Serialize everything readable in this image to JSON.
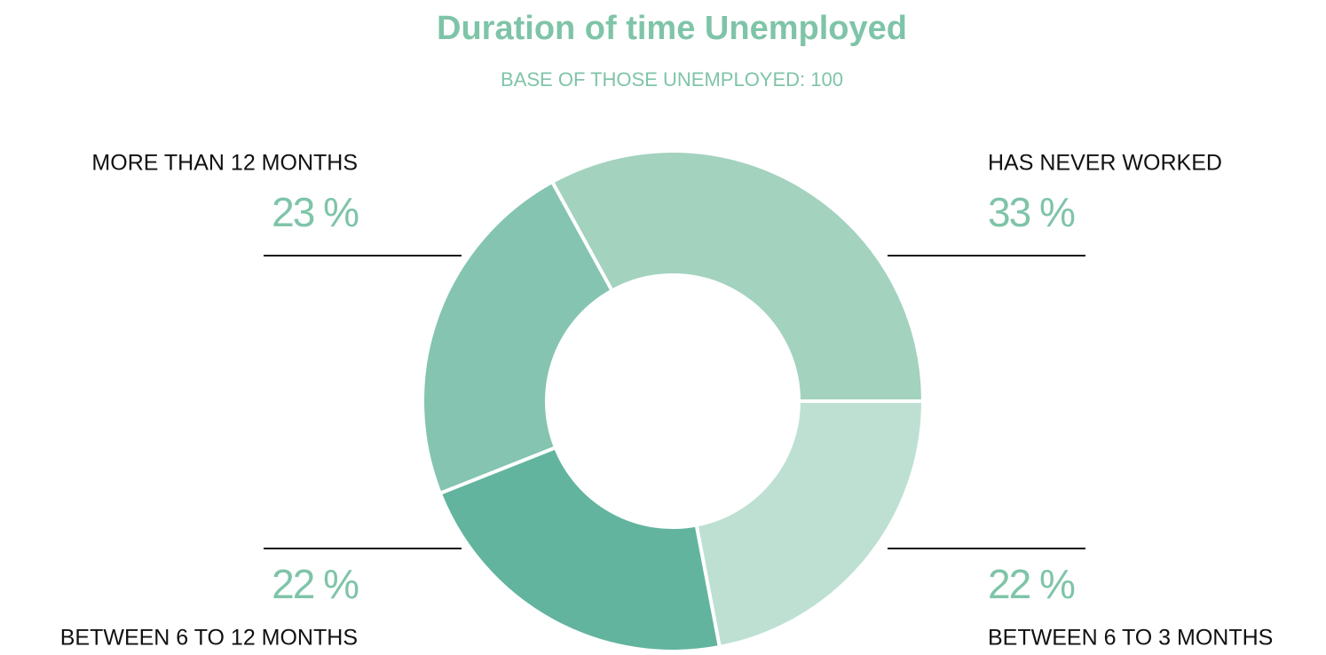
{
  "chart_data": {
    "type": "donut",
    "title": "Duration of time Unemployed",
    "subtitle": "BASE OF THOSE UNEMPLOYED: 100",
    "categories": [
      "HAS NEVER WORKED",
      "BETWEEN 6 TO 3 MONTHS",
      "BETWEEN 6 TO 12 MONTHS",
      "MORE THAN 12 MONTHS"
    ],
    "values": [
      33,
      22,
      22,
      23
    ],
    "value_labels": [
      "33 %",
      "22 %",
      "22 %",
      "23 %"
    ],
    "colors": [
      "#a3d2bf",
      "#bde0d2",
      "#62b49e",
      "#84c4b0"
    ]
  }
}
